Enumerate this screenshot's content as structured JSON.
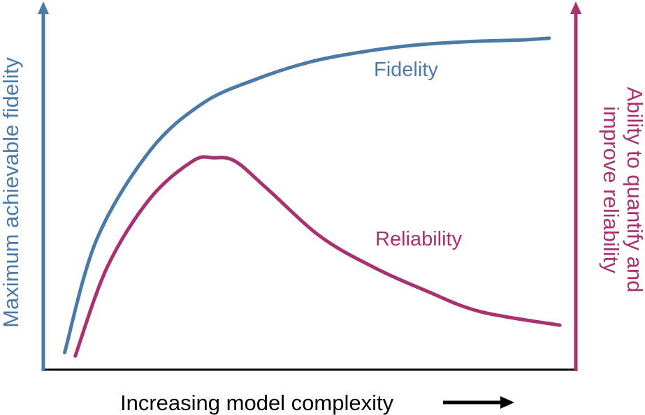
{
  "chart_data": {
    "type": "line",
    "title": "",
    "xlabel": "Increasing model complexity",
    "ylabel_left": "Maximum achievable fidelity",
    "ylabel_right_lines": [
      "Ability to quantify and",
      "improve reliability"
    ],
    "x_tick_labels": [],
    "y_tick_labels": [],
    "grid": false,
    "xlim": [
      0,
      1
    ],
    "ylim": [
      0,
      1
    ],
    "series": [
      {
        "name": "Fidelity",
        "axis": "left",
        "color": "#4a7aa8",
        "x": [
          0.04,
          0.1,
          0.2,
          0.3,
          0.4,
          0.5,
          0.6,
          0.7,
          0.8,
          0.9,
          0.95
        ],
        "y": [
          0.05,
          0.38,
          0.64,
          0.78,
          0.85,
          0.9,
          0.93,
          0.95,
          0.96,
          0.965,
          0.97
        ]
      },
      {
        "name": "Reliability",
        "axis": "right",
        "color": "#a8316f",
        "x": [
          0.06,
          0.12,
          0.2,
          0.28,
          0.32,
          0.36,
          0.42,
          0.52,
          0.62,
          0.72,
          0.82,
          0.97
        ],
        "y": [
          0.04,
          0.3,
          0.5,
          0.61,
          0.62,
          0.61,
          0.53,
          0.39,
          0.3,
          0.23,
          0.17,
          0.13
        ]
      }
    ],
    "arrow_icon": "right-arrow-icon",
    "colors": {
      "left_axis": "#4a7aa8",
      "right_axis": "#a8316f",
      "x_axis": "#000000"
    }
  }
}
